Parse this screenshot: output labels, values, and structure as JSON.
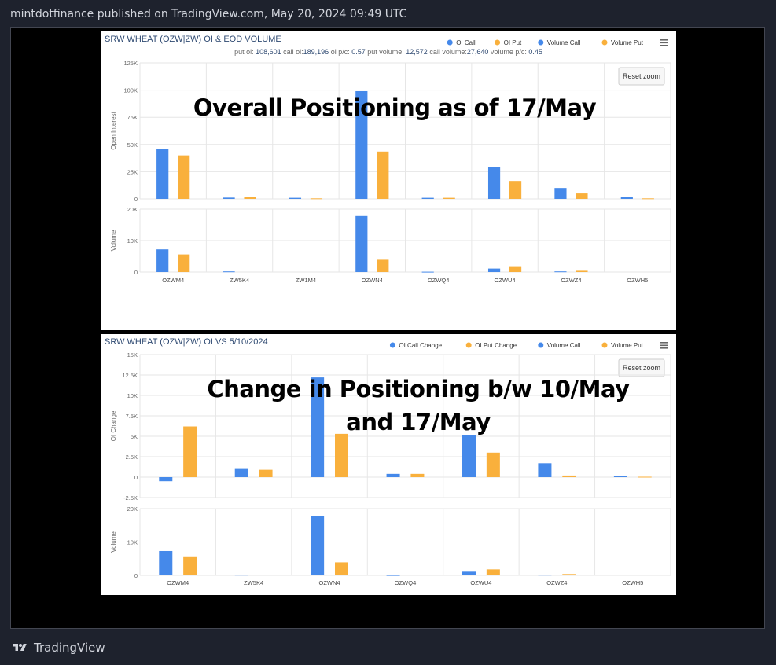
{
  "header": {
    "text": "mintdotfinance published on TradingView.com, May 20, 2024 09:49 UTC"
  },
  "footer": {
    "brand": "TradingView"
  },
  "colors": {
    "call": "#4589ea",
    "put": "#f9b03c",
    "title": "#2f4a72"
  },
  "chart_data": [
    {
      "type": "bar",
      "title": "SRW WHEAT (OZW|ZW) OI & EOD VOLUME",
      "subtitle": {
        "prefix": "put oi: ",
        "put_oi": "108,601",
        "call_oi_label": " call oi:",
        "call_oi": "189,196",
        "pc_label": " oi p/c: ",
        "pc": "0.57",
        "put_vol_label": " put volume: ",
        "put_vol": "12,572",
        "call_vol_label": " call volume:",
        "call_vol": "27,640",
        "vol_pc_label": " volume p/c: ",
        "vol_pc": "0.45"
      },
      "annotation": [
        "Overall Positioning as of 17/May"
      ],
      "reset_zoom": "Reset zoom",
      "legend": [
        "OI Call",
        "OI Put",
        "Volume Call",
        "Volume Put"
      ],
      "legend_colors": [
        "#4589ea",
        "#f9b03c",
        "#4589ea",
        "#f9b03c"
      ],
      "legend_position": "top-right",
      "categories": [
        "OZWM4",
        "ZW5K4",
        "ZW1M4",
        "OZWN4",
        "OZWQ4",
        "OZWU4",
        "OZWZ4",
        "OZWH5"
      ],
      "top": {
        "ylabel": "Open Interest",
        "ylim": [
          0,
          125000
        ],
        "ticks": [
          0,
          25000,
          50000,
          75000,
          100000,
          125000
        ],
        "tick_labels": [
          "0",
          "25K",
          "50K",
          "75K",
          "100K",
          "125K"
        ],
        "series": [
          {
            "name": "OI Call",
            "values": [
              46000,
              1200,
              1000,
              99000,
              1000,
              29000,
              10000,
              1500
            ]
          },
          {
            "name": "OI Put",
            "values": [
              40000,
              1500,
              500,
              43500,
              1000,
              16500,
              5000,
              500
            ]
          }
        ]
      },
      "bottom": {
        "ylabel": "Volume",
        "ylim": [
          0,
          20000
        ],
        "ticks": [
          0,
          10000,
          20000
        ],
        "tick_labels": [
          "0",
          "10K",
          "20K"
        ],
        "series": [
          {
            "name": "Volume Call",
            "values": [
              7200,
              200,
              0,
              17800,
              100,
              1100,
              200,
              0
            ]
          },
          {
            "name": "Volume Put",
            "values": [
              5600,
              0,
              0,
              3900,
              0,
              1600,
              400,
              0
            ]
          }
        ]
      }
    },
    {
      "type": "bar",
      "title": "SRW WHEAT (OZW|ZW) OI VS 5/10/2024",
      "annotation": [
        "Change in Positioning b/w 10/May",
        "and 17/May"
      ],
      "reset_zoom": "Reset zoom",
      "legend": [
        "OI Call Change",
        "OI Put Change",
        "Volume Call",
        "Volume Put"
      ],
      "legend_colors": [
        "#4589ea",
        "#f9b03c",
        "#4589ea",
        "#f9b03c"
      ],
      "legend_position": "top-right",
      "categories": [
        "OZWM4",
        "ZW5K4",
        "OZWN4",
        "OZWQ4",
        "OZWU4",
        "OZWZ4",
        "OZWH5"
      ],
      "top": {
        "ylabel": "OI Change",
        "ylim": [
          -2500,
          15000
        ],
        "ticks": [
          -2500,
          0,
          2500,
          5000,
          7500,
          10000,
          12500,
          15000
        ],
        "tick_labels": [
          "-2.5K",
          "0",
          "2.5K",
          "5K",
          "7.5K",
          "10K",
          "12.5K",
          "15K"
        ],
        "series": [
          {
            "name": "OI Call Change",
            "values": [
              -500,
              1000,
              12200,
              400,
              5100,
              1700,
              100
            ]
          },
          {
            "name": "OI Put Change",
            "values": [
              6200,
              900,
              5300,
              400,
              3000,
              200,
              50
            ]
          }
        ]
      },
      "bottom": {
        "ylabel": "Volume",
        "ylim": [
          0,
          20000
        ],
        "ticks": [
          0,
          10000,
          20000
        ],
        "tick_labels": [
          "0",
          "10K",
          "20K"
        ],
        "series": [
          {
            "name": "Volume Call",
            "values": [
              7300,
              200,
              17800,
              100,
              1100,
              200,
              0
            ]
          },
          {
            "name": "Volume Put",
            "values": [
              5700,
              0,
              3900,
              0,
              1800,
              400,
              0
            ]
          }
        ]
      }
    }
  ]
}
